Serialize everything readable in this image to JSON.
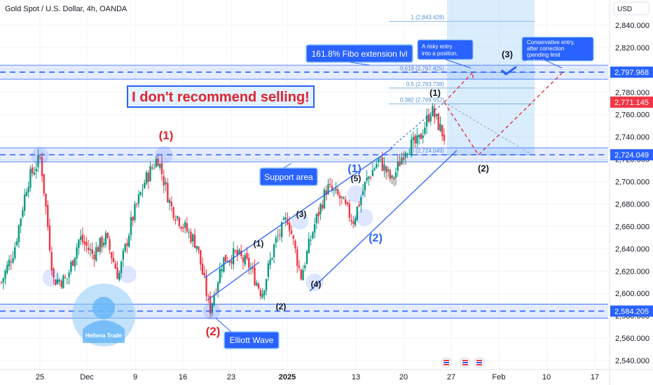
{
  "header": {
    "symbol_title": "Gold Spot / U.S. Dollar, 4h, OANDA",
    "currency": "USD"
  },
  "chart_data": {
    "type": "candlestick",
    "title": "Gold Spot / U.S. Dollar, 4h, OANDA",
    "ylim": [
      2525,
      2870
    ],
    "y_ticks": [
      2540,
      2560,
      2580,
      2600,
      2620,
      2640,
      2660,
      2680,
      2700,
      2720,
      2740,
      2760,
      2780,
      2800,
      2820,
      2840
    ],
    "x_ticks": [
      {
        "label": "25",
        "bold": false
      },
      {
        "label": "Dec",
        "bold": false
      },
      {
        "label": "9",
        "bold": false
      },
      {
        "label": "16",
        "bold": false
      },
      {
        "label": "23",
        "bold": false
      },
      {
        "label": "2025",
        "bold": true
      },
      {
        "label": "13",
        "bold": false
      },
      {
        "label": "20",
        "bold": false
      },
      {
        "label": "27",
        "bold": false
      },
      {
        "label": "Feb",
        "bold": false
      },
      {
        "label": "10",
        "bold": false
      },
      {
        "label": "17",
        "bold": false
      }
    ],
    "price_badges": [
      {
        "value": "2,797.968",
        "color": "#2962ff"
      },
      {
        "value": "2,771.145",
        "color": "#f23645"
      },
      {
        "value": "2,724.049",
        "color": "#2962ff"
      },
      {
        "value": "2,584.205",
        "color": "#2962ff"
      }
    ],
    "price_path": [
      [
        2610,
        2660
      ],
      [
        2640,
        2630
      ],
      [
        2700,
        2705
      ],
      [
        2722,
        2710
      ],
      [
        2612,
        2640
      ],
      [
        2612,
        2625
      ],
      [
        2650,
        2660
      ],
      [
        2635,
        2660
      ],
      [
        2650,
        2645
      ],
      [
        2615,
        2640
      ],
      [
        2665,
        2660
      ],
      [
        2700,
        2710
      ],
      [
        2722,
        2700
      ],
      [
        2678,
        2660
      ],
      [
        2660,
        2650
      ],
      [
        2644,
        2625
      ],
      [
        2585,
        2600
      ],
      [
        2630,
        2615
      ],
      [
        2635,
        2620
      ],
      [
        2625,
        2605
      ],
      [
        2600,
        2612
      ],
      [
        2645,
        2620
      ],
      [
        2668,
        2655
      ],
      [
        2615,
        2640
      ],
      [
        2660,
        2680
      ],
      [
        2695,
        2710
      ],
      [
        2685,
        2670
      ],
      [
        2665,
        2680
      ],
      [
        2700,
        2690
      ],
      [
        2720,
        2725
      ],
      [
        2700,
        2710
      ],
      [
        2730,
        2725
      ],
      [
        2735,
        2760
      ],
      [
        2765,
        2745
      ],
      [
        2740,
        2771
      ]
    ],
    "fib_levels": [
      {
        "label": "1 (2,843.428)",
        "value": 2843.428
      },
      {
        "label": "0.618 (2,797.825)",
        "value": 2797.825
      },
      {
        "label": "0.5 (2,783.738)",
        "value": 2783.738
      },
      {
        "label": "0.382 (2,769.652)",
        "value": 2769.652
      },
      {
        "label": "0 (2,724.049)",
        "value": 2724.049
      }
    ],
    "horizontal_zones": [
      {
        "value": 2797.968
      },
      {
        "value": 2724.049
      },
      {
        "value": 2584.205
      }
    ],
    "wave_labels": [
      {
        "text": "(1)",
        "color": "#e0242f"
      },
      {
        "text": "(2)",
        "color": "#e0242f"
      },
      {
        "text": "(1)",
        "color": "#131722"
      },
      {
        "text": "(2)",
        "color": "#131722"
      },
      {
        "text": "(3)",
        "color": "#131722"
      },
      {
        "text": "(4)",
        "color": "#131722"
      },
      {
        "text": "(5)",
        "color": "#131722"
      },
      {
        "text": "(1)",
        "color": "#2962ff"
      },
      {
        "text": "(2)",
        "color": "#2962ff"
      },
      {
        "text": "(1)",
        "color": "#131722"
      },
      {
        "text": "(2)",
        "color": "#131722"
      },
      {
        "text": "(3)",
        "color": "#131722"
      }
    ],
    "annotations": [
      {
        "text": "161.8% Fibo extension lvl"
      },
      {
        "text": "A risky entry into a position."
      },
      {
        "text": "Conservative entry, after correction (pending limit orders)"
      },
      {
        "text": "I don't recommend selling!"
      },
      {
        "text": "Support area"
      },
      {
        "text": "Elliott Wave"
      }
    ],
    "watermark_text": "Hellena Trade",
    "colors": {
      "up": "#089981",
      "down": "#f23645",
      "zone": "#2962ff",
      "fib_box": "#bbdefb",
      "red_label": "#e0242f",
      "blue_label": "#2962ff"
    }
  }
}
